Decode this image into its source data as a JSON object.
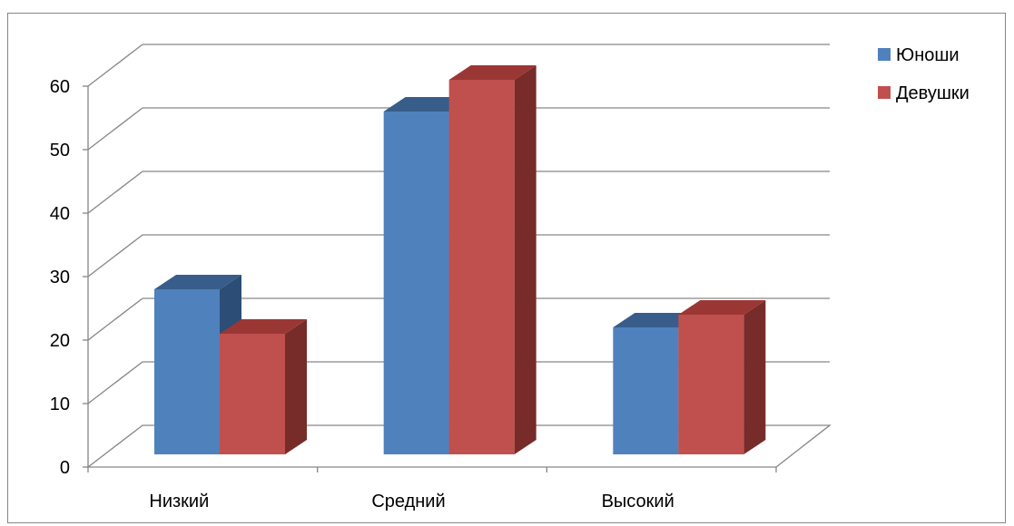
{
  "chart_data": {
    "type": "bar",
    "three_d": true,
    "categories": [
      "Низкий",
      "Средний",
      "Высокий"
    ],
    "series": [
      {
        "name": "Юноши",
        "values": [
          26,
          54,
          20
        ],
        "color": "#4F81BD",
        "top_color": "#385D8A",
        "side_color": "#2C4D75"
      },
      {
        "name": "Девушки",
        "values": [
          19,
          59,
          22
        ],
        "color": "#C0504D",
        "top_color": "#9A3734",
        "side_color": "#772C2A"
      }
    ],
    "yticks": [
      "0",
      "10",
      "20",
      "30",
      "40",
      "50",
      "60"
    ],
    "ylim": [
      0,
      60
    ],
    "grid": true,
    "legend_position": "right"
  }
}
